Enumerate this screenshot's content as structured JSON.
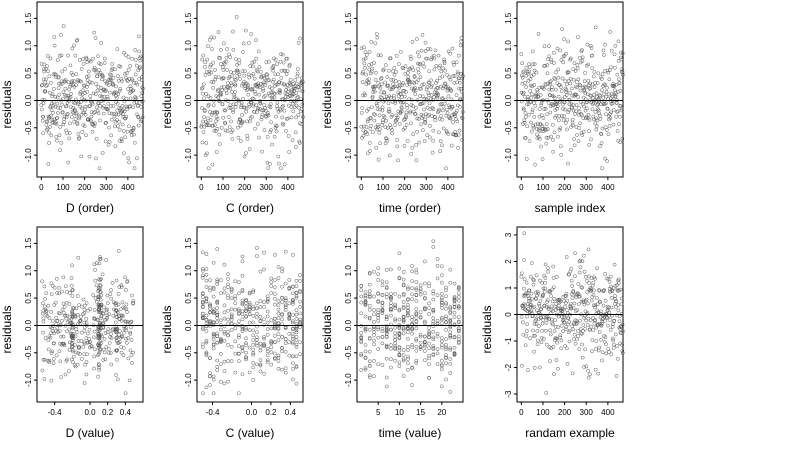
{
  "chart_data": [
    {
      "type": "scatter",
      "xlabel": "D (order)",
      "ylabel": "residuals",
      "xticks": [
        0,
        100,
        200,
        300,
        400
      ],
      "xticklabels": [
        "0",
        "100",
        "200",
        "300",
        "400"
      ],
      "yticks": [
        -1.0,
        -0.5,
        0.0,
        0.5,
        1.0,
        1.5
      ],
      "yticklabels": [
        "-1.0",
        "-0.5",
        "0.0",
        "0.5",
        "1.0",
        "1.5"
      ],
      "xlim": [
        -20,
        470
      ],
      "ylim": [
        -1.4,
        1.8
      ],
      "hline": 0,
      "gen": {
        "n": 470,
        "x": [
          0,
          470
        ],
        "dist": "normal",
        "mean": 0.05,
        "sd": 0.48,
        "seed": 11,
        "mode": "index"
      }
    },
    {
      "type": "scatter",
      "xlabel": "C (order)",
      "ylabel": "residuals",
      "xticks": [
        0,
        100,
        200,
        300,
        400
      ],
      "xticklabels": [
        "0",
        "100",
        "200",
        "300",
        "400"
      ],
      "yticks": [
        -1.0,
        -0.5,
        0.0,
        0.5,
        1.0,
        1.5
      ],
      "yticklabels": [
        "-1.0",
        "-0.5",
        "0.0",
        "0.5",
        "1.0",
        "1.5"
      ],
      "xlim": [
        -20,
        470
      ],
      "ylim": [
        -1.4,
        1.8
      ],
      "hline": 0,
      "gen": {
        "n": 470,
        "x": [
          0,
          470
        ],
        "dist": "normal",
        "mean": 0.05,
        "sd": 0.48,
        "seed": 23,
        "mode": "index"
      }
    },
    {
      "type": "scatter",
      "xlabel": "time (order)",
      "ylabel": "residuals",
      "xticks": [
        0,
        100,
        200,
        300,
        400
      ],
      "xticklabels": [
        "0",
        "100",
        "200",
        "300",
        "400"
      ],
      "yticks": [
        -1.0,
        -0.5,
        0.0,
        0.5,
        1.0,
        1.5
      ],
      "yticklabels": [
        "-1.0",
        "-0.5",
        "0.0",
        "0.5",
        "1.0",
        "1.5"
      ],
      "xlim": [
        -20,
        470
      ],
      "ylim": [
        -1.4,
        1.8
      ],
      "hline": 0,
      "gen": {
        "n": 470,
        "x": [
          0,
          470
        ],
        "dist": "normal",
        "mean": 0.05,
        "sd": 0.48,
        "seed": 37,
        "mode": "index"
      }
    },
    {
      "type": "scatter",
      "xlabel": "sample index",
      "ylabel": "residuals",
      "xticks": [
        0,
        100,
        200,
        300,
        400
      ],
      "xticklabels": [
        "0",
        "100",
        "200",
        "300",
        "400"
      ],
      "yticks": [
        -1.0,
        -0.5,
        0.0,
        0.5,
        1.0,
        1.5
      ],
      "yticklabels": [
        "-1.0",
        "-0.5",
        "0.0",
        "0.5",
        "1.0",
        "1.5"
      ],
      "xlim": [
        -20,
        470
      ],
      "ylim": [
        -1.4,
        1.8
      ],
      "hline": 0,
      "gen": {
        "n": 470,
        "x": [
          0,
          470
        ],
        "dist": "normal",
        "mean": 0.05,
        "sd": 0.48,
        "seed": 41,
        "mode": "index"
      }
    },
    {
      "type": "scatter",
      "xlabel": "D (value)",
      "ylabel": "residuals",
      "xticks": [
        -0.4,
        0.0,
        0.2,
        0.4
      ],
      "xticklabels": [
        "-0.4",
        "0.0",
        "0.2",
        "0.4"
      ],
      "yticks": [
        -1.0,
        -0.5,
        0.0,
        0.5,
        1.0,
        1.5
      ],
      "yticklabels": [
        "-1.0",
        "-0.5",
        "0.0",
        "0.5",
        "1.0",
        "1.5"
      ],
      "xlim": [
        -0.6,
        0.6
      ],
      "ylim": [
        -1.4,
        1.8
      ],
      "hline": 0,
      "gen": {
        "n": 470,
        "x": [
          -0.55,
          0.5
        ],
        "dist": "normal",
        "mean": 0.05,
        "sd": 0.48,
        "seed": 53,
        "mode": "cluster",
        "centers": [
          0.1,
          0.12,
          0.3,
          -0.2
        ]
      }
    },
    {
      "type": "scatter",
      "xlabel": "C (value)",
      "ylabel": "residuals",
      "xticks": [
        -0.4,
        0.0,
        0.2,
        0.4
      ],
      "xticklabels": [
        "-0.4",
        "0.0",
        "0.2",
        "0.4"
      ],
      "yticks": [
        -1.0,
        -0.5,
        0.0,
        0.5,
        1.0,
        1.5
      ],
      "yticklabels": [
        "-1.0",
        "-0.5",
        "0.0",
        "0.5",
        "1.0",
        "1.5"
      ],
      "xlim": [
        -0.56,
        0.53
      ],
      "ylim": [
        -1.4,
        1.8
      ],
      "hline": 0,
      "gen": {
        "n": 470,
        "x": [
          -0.5,
          0.5
        ],
        "dist": "normal",
        "mean": 0.05,
        "sd": 0.48,
        "seed": 67,
        "mode": "columns",
        "columns": 28
      }
    },
    {
      "type": "scatter",
      "xlabel": "time (value)",
      "ylabel": "residuals",
      "xticks": [
        5,
        10,
        15,
        20
      ],
      "xticklabels": [
        "5",
        "10",
        "15",
        "20"
      ],
      "yticks": [
        -1.0,
        -0.5,
        0.0,
        0.5,
        1.0,
        1.5
      ],
      "yticklabels": [
        "-1.0",
        "-0.5",
        "0.0",
        "0.5",
        "1.0",
        "1.5"
      ],
      "xlim": [
        0,
        25
      ],
      "ylim": [
        -1.4,
        1.8
      ],
      "hline": 0,
      "gen": {
        "n": 470,
        "x": [
          1,
          24
        ],
        "dist": "normal",
        "mean": 0.05,
        "sd": 0.48,
        "seed": 79,
        "mode": "columns",
        "columns": 24
      }
    },
    {
      "type": "scatter",
      "xlabel": "randam example",
      "ylabel": "residuals",
      "xticks": [
        0,
        100,
        200,
        300,
        400
      ],
      "xticklabels": [
        "0",
        "100",
        "200",
        "300",
        "400"
      ],
      "yticks": [
        -3,
        -2,
        -1,
        0,
        1,
        2,
        3
      ],
      "yticklabels": [
        "-3",
        "-2",
        "-1",
        "0",
        "1",
        "2",
        "3"
      ],
      "xlim": [
        -20,
        470
      ],
      "ylim": [
        -3.3,
        3.3
      ],
      "hline": 0,
      "gen": {
        "n": 470,
        "x": [
          0,
          470
        ],
        "dist": "normal",
        "mean": 0,
        "sd": 1.0,
        "seed": 97,
        "mode": "index"
      }
    }
  ]
}
